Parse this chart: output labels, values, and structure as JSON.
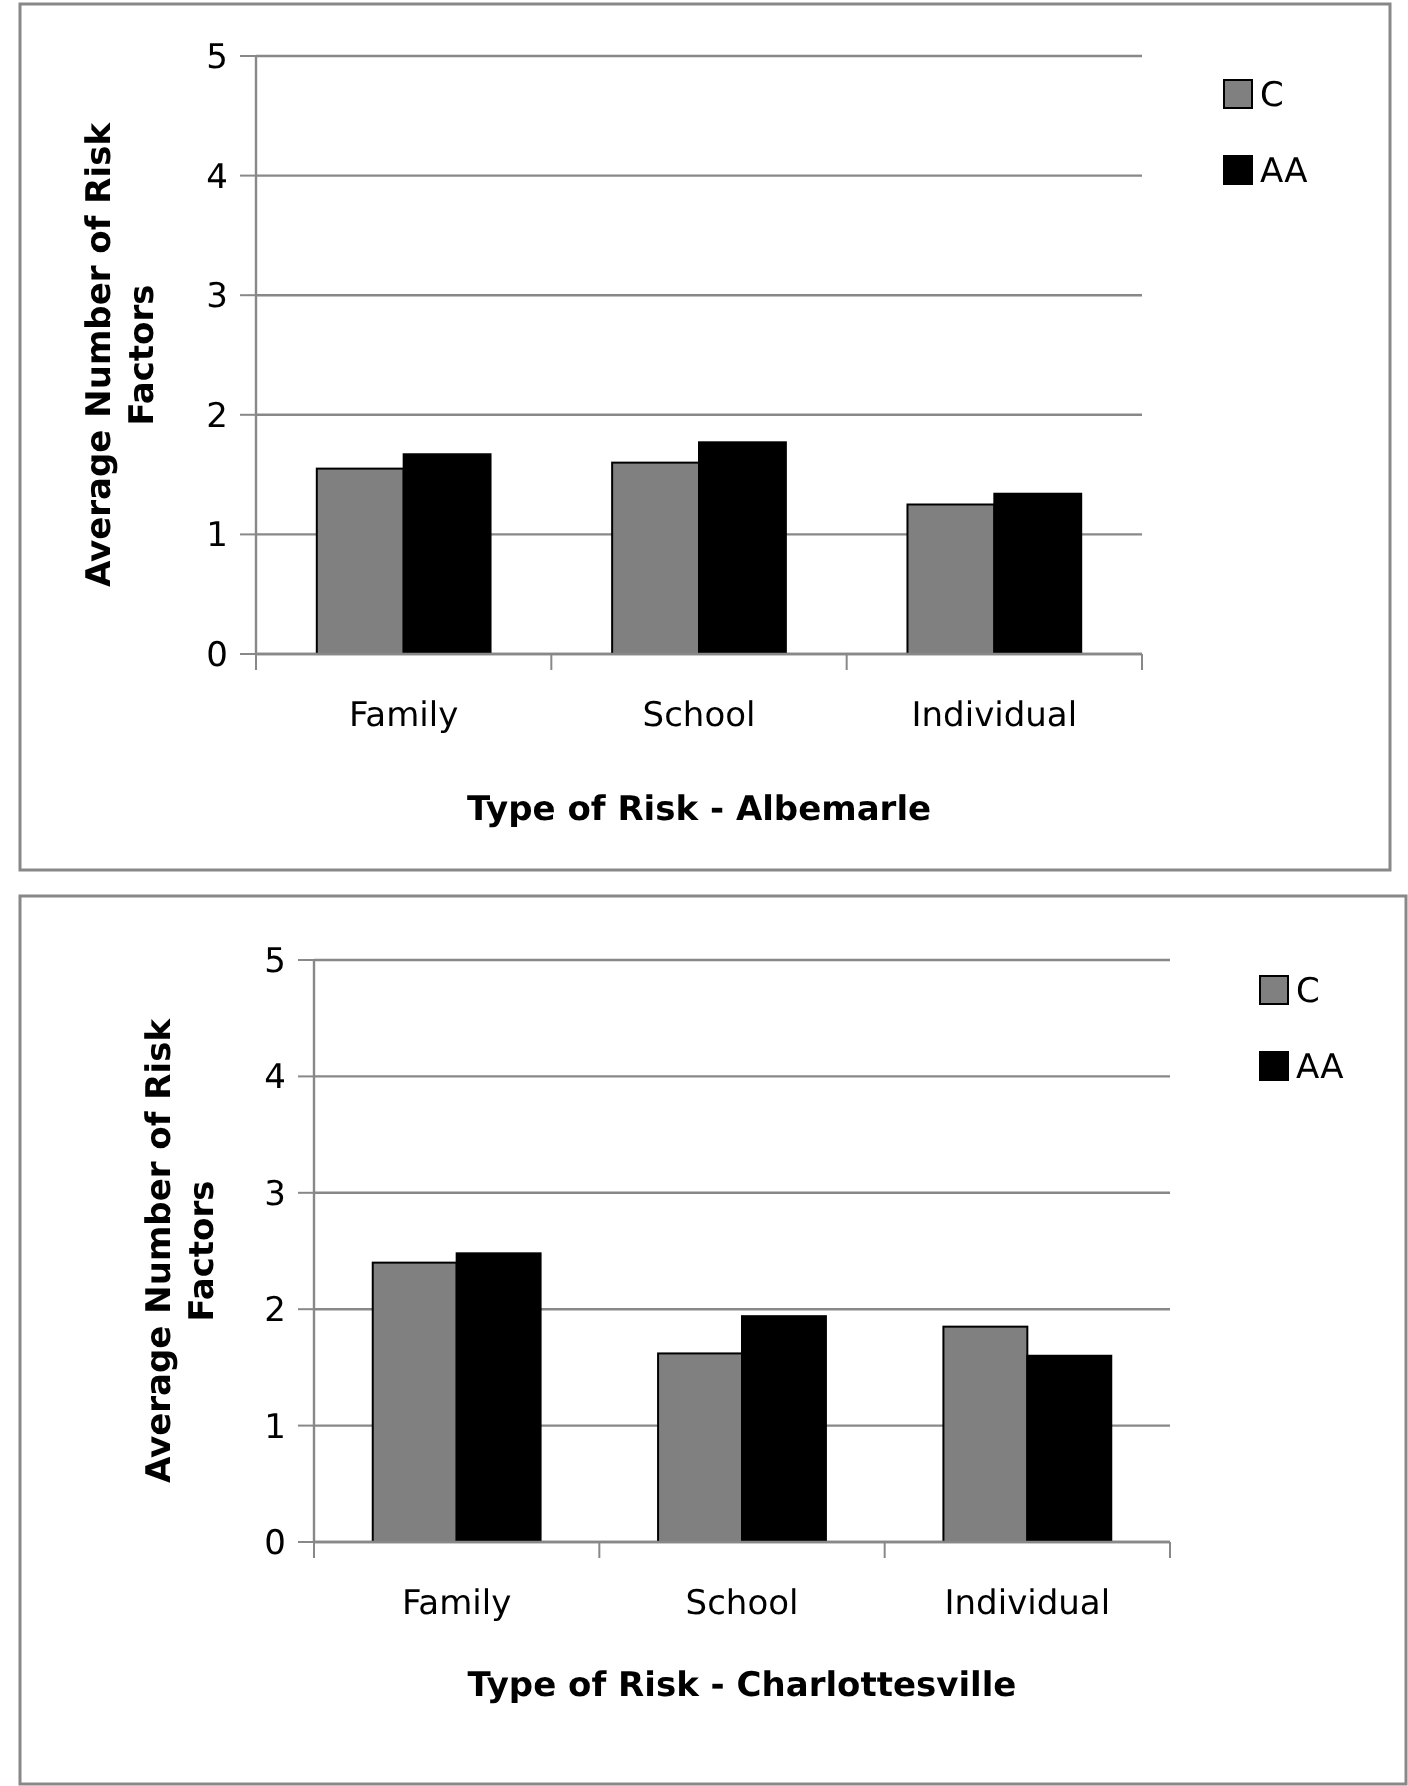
{
  "chart_data": [
    {
      "type": "bar",
      "xlabel": "Type of Risk - Albemarle",
      "ylabel": "Average Number of Risk Factors",
      "categories": [
        "Family",
        "School",
        "Individual"
      ],
      "series": [
        {
          "name": "C",
          "color": "#808080",
          "values": [
            1.55,
            1.6,
            1.25
          ]
        },
        {
          "name": "AA",
          "color": "#000000",
          "values": [
            1.67,
            1.77,
            1.34
          ]
        }
      ],
      "ylim": [
        0,
        5
      ],
      "yticks": [
        0,
        1,
        2,
        3,
        4,
        5
      ],
      "grid": "y",
      "legend": "right"
    },
    {
      "type": "bar",
      "xlabel": "Type of Risk - Charlottesville",
      "ylabel": "Average Number of Risk Factors",
      "categories": [
        "Family",
        "School",
        "Individual"
      ],
      "series": [
        {
          "name": "C",
          "color": "#808080",
          "values": [
            2.4,
            1.62,
            1.85
          ]
        },
        {
          "name": "AA",
          "color": "#000000",
          "values": [
            2.48,
            1.94,
            1.6
          ]
        }
      ],
      "ylim": [
        0,
        5
      ],
      "yticks": [
        0,
        1,
        2,
        3,
        4,
        5
      ],
      "grid": "y",
      "legend": "right"
    }
  ]
}
